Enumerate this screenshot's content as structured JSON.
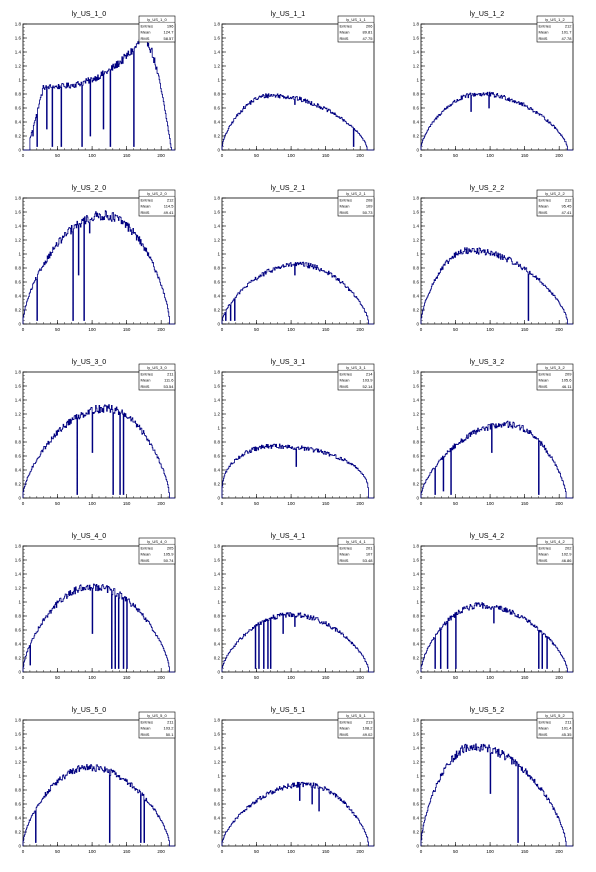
{
  "axis": {
    "xlim": [
      0,
      220
    ],
    "ylim": [
      0,
      1.8
    ],
    "xticks": [
      0,
      50,
      100,
      150,
      200
    ],
    "yticks": [
      0,
      0.2,
      0.4,
      0.6,
      0.8,
      1,
      1.2,
      1.4,
      1.6,
      1.8
    ]
  },
  "stats_labels": [
    "Entries",
    "Mean",
    "RMS"
  ],
  "line_color": "#000080",
  "chart_data": [
    {
      "type": "line",
      "title": "ly_US_1_0",
      "stats": {
        "name": "ly_US_1_0",
        "entries": "196",
        "mean": "124.7",
        "rms": "58.57"
      },
      "curve": {
        "left": 10,
        "right": 215,
        "start": 0.15,
        "rise": 0.9,
        "peak_x": 175,
        "peak": 1.62,
        "shape": "up"
      },
      "dips": [
        [
          14,
          0.2
        ],
        [
          20,
          0.05
        ],
        [
          34,
          0.3
        ],
        [
          42,
          0.05
        ],
        [
          55,
          0.05
        ],
        [
          85,
          0.05
        ],
        [
          97,
          0.2
        ],
        [
          116,
          0.3
        ],
        [
          126,
          0.05
        ],
        [
          160,
          0.05
        ]
      ]
    },
    {
      "type": "line",
      "title": "ly_US_1_1",
      "stats": {
        "name": "ly_US_1_1",
        "entries": "206",
        "mean": "89.81",
        "rms": "47.75"
      },
      "curve": {
        "left": 0,
        "right": 210,
        "start": 0.03,
        "peak_x": 70,
        "peak": 0.78,
        "shape": "dome"
      },
      "dips": [
        [
          105,
          0.65
        ],
        [
          190,
          0.05
        ]
      ]
    },
    {
      "type": "line",
      "title": "ly_US_1_2",
      "stats": {
        "name": "ly_US_1_2",
        "entries": "212",
        "mean": "101.7",
        "rms": "47.78"
      },
      "curve": {
        "left": 0,
        "right": 212,
        "start": 0.03,
        "peak_x": 85,
        "peak": 0.8,
        "shape": "dome"
      },
      "dips": [
        [
          72,
          0.55
        ],
        [
          98,
          0.6
        ]
      ]
    },
    {
      "type": "line",
      "title": "ly_US_2_0",
      "stats": {
        "name": "ly_US_2_0",
        "entries": "212",
        "mean": "114.5",
        "rms": "49.41"
      },
      "curve": {
        "left": 0,
        "right": 212,
        "start": 0.03,
        "peak_x": 118,
        "peak": 1.55,
        "shape": "dome"
      },
      "dips": [
        [
          20,
          0.05
        ],
        [
          72,
          0.05
        ],
        [
          80,
          0.7
        ],
        [
          88,
          0.05
        ],
        [
          96,
          1.3
        ]
      ]
    },
    {
      "type": "line",
      "title": "ly_US_2_1",
      "stats": {
        "name": "ly_US_2_1",
        "entries": "208",
        "mean": "109",
        "rms": "50.73"
      },
      "curve": {
        "left": 0,
        "right": 212,
        "start": 0.03,
        "peak_x": 110,
        "peak": 0.85,
        "shape": "dome"
      },
      "dips": [
        [
          5,
          0.05
        ],
        [
          12,
          0.05
        ],
        [
          18,
          0.05
        ],
        [
          105,
          0.7
        ]
      ]
    },
    {
      "type": "line",
      "title": "ly_US_2_2",
      "stats": {
        "name": "ly_US_2_2",
        "entries": "212",
        "mean": "95.45",
        "rms": "47.41"
      },
      "curve": {
        "left": 0,
        "right": 212,
        "start": 0.03,
        "peak_x": 70,
        "peak": 1.05,
        "shape": "dome"
      },
      "dips": [
        [
          155,
          0.05
        ]
      ]
    },
    {
      "type": "line",
      "title": "ly_US_3_0",
      "stats": {
        "name": "ly_US_3_0",
        "entries": "211",
        "mean": "111.6",
        "rms": "53.54"
      },
      "curve": {
        "left": 0,
        "right": 212,
        "start": 0.03,
        "peak_x": 120,
        "peak": 1.28,
        "shape": "dome"
      },
      "dips": [
        [
          78,
          0.05
        ],
        [
          100,
          0.65
        ],
        [
          130,
          0.05
        ],
        [
          140,
          0.05
        ],
        [
          145,
          0.05
        ]
      ]
    },
    {
      "type": "line",
      "title": "ly_US_3_1",
      "stats": {
        "name": "ly_US_3_1",
        "entries": "214",
        "mean": "103.9",
        "rms": "52.14"
      },
      "curve": {
        "left": 0,
        "right": 212,
        "start": 0.03,
        "peak_x": 75,
        "peak": 0.74,
        "shape": "plateau"
      },
      "dips": [
        [
          107,
          0.45
        ]
      ]
    },
    {
      "type": "line",
      "title": "ly_US_3_2",
      "stats": {
        "name": "ly_US_3_2",
        "entries": "209",
        "mean": "105.6",
        "rms": "46.11"
      },
      "curve": {
        "left": 0,
        "right": 210,
        "start": 0.03,
        "peak_x": 125,
        "peak": 1.05,
        "shape": "dome"
      },
      "dips": [
        [
          20,
          0.05
        ],
        [
          32,
          0.1
        ],
        [
          43,
          0.05
        ],
        [
          102,
          0.65
        ],
        [
          170,
          0.05
        ]
      ]
    },
    {
      "type": "line",
      "title": "ly_US_4_0",
      "stats": {
        "name": "ly_US_4_0",
        "entries": "205",
        "mean": "105.9",
        "rms": "50.74"
      },
      "curve": {
        "left": 0,
        "right": 212,
        "start": 0.03,
        "peak_x": 100,
        "peak": 1.22,
        "shape": "dome"
      },
      "dips": [
        [
          10,
          0.1
        ],
        [
          100,
          0.55
        ],
        [
          128,
          0.05
        ],
        [
          133,
          0.05
        ],
        [
          138,
          0.05
        ],
        [
          145,
          0.05
        ],
        [
          150,
          0.05
        ]
      ]
    },
    {
      "type": "line",
      "title": "ly_US_4_1",
      "stats": {
        "name": "ly_US_4_1",
        "entries": "201",
        "mean": "107",
        "rms": "53.48"
      },
      "curve": {
        "left": 0,
        "right": 212,
        "start": 0.03,
        "peak_x": 100,
        "peak": 0.82,
        "shape": "dome"
      },
      "dips": [
        [
          48,
          0.05
        ],
        [
          53,
          0.05
        ],
        [
          60,
          0.05
        ],
        [
          66,
          0.05
        ],
        [
          70,
          0.05
        ],
        [
          88,
          0.55
        ],
        [
          105,
          0.65
        ]
      ]
    },
    {
      "type": "line",
      "title": "ly_US_4_2",
      "stats": {
        "name": "ly_US_4_2",
        "entries": "202",
        "mean": "102.9",
        "rms": "46.86"
      },
      "curve": {
        "left": 0,
        "right": 212,
        "start": 0.03,
        "peak_x": 85,
        "peak": 0.95,
        "shape": "dome"
      },
      "dips": [
        [
          20,
          0.05
        ],
        [
          28,
          0.05
        ],
        [
          38,
          0.05
        ],
        [
          50,
          0.05
        ],
        [
          105,
          0.7
        ],
        [
          170,
          0.05
        ],
        [
          175,
          0.05
        ],
        [
          182,
          0.05
        ]
      ]
    },
    {
      "type": "line",
      "title": "ly_US_5_0",
      "stats": {
        "name": "ly_US_5_0",
        "entries": "211",
        "mean": "103.2",
        "rms": "50.1"
      },
      "curve": {
        "left": 0,
        "right": 212,
        "start": 0.03,
        "peak_x": 95,
        "peak": 1.12,
        "shape": "dome"
      },
      "dips": [
        [
          18,
          0.05
        ],
        [
          125,
          0.05
        ],
        [
          170,
          0.05
        ],
        [
          175,
          0.05
        ]
      ]
    },
    {
      "type": "line",
      "title": "ly_US_5_1",
      "stats": {
        "name": "ly_US_5_1",
        "entries": "213",
        "mean": "108.2",
        "rms": "49.02"
      },
      "curve": {
        "left": 0,
        "right": 212,
        "start": 0.03,
        "peak_x": 120,
        "peak": 0.88,
        "shape": "dome"
      },
      "dips": [
        [
          112,
          0.65
        ],
        [
          130,
          0.6
        ],
        [
          140,
          0.5
        ]
      ]
    },
    {
      "type": "line",
      "title": "ly_US_5_2",
      "stats": {
        "name": "ly_US_5_2",
        "entries": "211",
        "mean": "101.4",
        "rms": "45.35"
      },
      "curve": {
        "left": 0,
        "right": 210,
        "start": 0.03,
        "peak_x": 75,
        "peak": 1.42,
        "shape": "dome"
      },
      "dips": [
        [
          100,
          0.75
        ],
        [
          140,
          0.05
        ]
      ]
    }
  ]
}
